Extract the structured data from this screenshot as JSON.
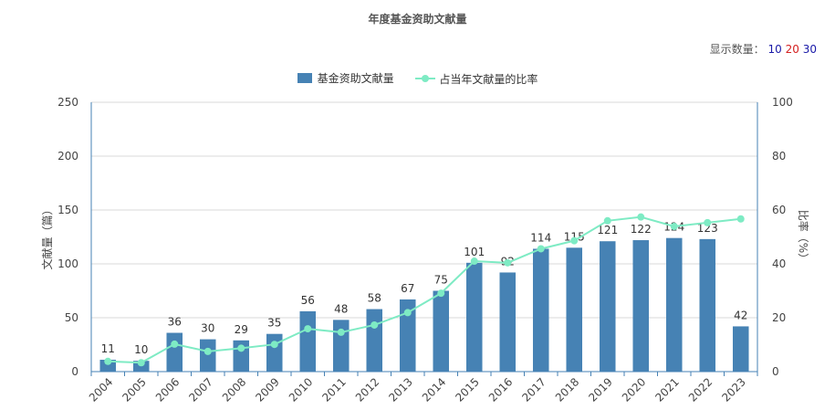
{
  "chart_data": {
    "type": "bar",
    "title": "年度基金资助文献量",
    "categories": [
      "2004",
      "2005",
      "2006",
      "2007",
      "2008",
      "2009",
      "2010",
      "2011",
      "2012",
      "2013",
      "2014",
      "2015",
      "2016",
      "2017",
      "2018",
      "2019",
      "2020",
      "2021",
      "2022",
      "2023"
    ],
    "series": [
      {
        "name": "基金资助文献量",
        "type": "bar",
        "axis": "left",
        "color": "#4682B4",
        "values": [
          11,
          10,
          36,
          30,
          29,
          35,
          56,
          48,
          58,
          67,
          75,
          101,
          92,
          114,
          115,
          121,
          122,
          124,
          123,
          42
        ]
      },
      {
        "name": "占当年文献量的比率",
        "type": "line",
        "axis": "right",
        "color": "#7EEBC4",
        "values": [
          3.8,
          3.3,
          10.2,
          7.5,
          8.7,
          10.1,
          15.9,
          14.6,
          17.3,
          21.9,
          29.1,
          41.0,
          40.4,
          45.6,
          48.6,
          56.0,
          57.4,
          53.9,
          55.3,
          56.7
        ]
      }
    ],
    "ylabel": "文献量（篇）",
    "y2label": "比率（%）",
    "ylim": [
      0,
      250
    ],
    "y2lim": [
      0,
      100
    ],
    "yticks": [
      "0",
      "50",
      "100",
      "150",
      "200",
      "250"
    ],
    "y2ticks": [
      "0",
      "20",
      "40",
      "60",
      "80",
      "100"
    ],
    "grid": true,
    "legend": "top-center"
  },
  "controls": {
    "display_count_label": "显示数量：",
    "options": [
      {
        "label": "10",
        "color": "#1a1aa8"
      },
      {
        "label": "20",
        "color": "#d42020"
      },
      {
        "label": "30",
        "color": "#1a1aa8"
      }
    ]
  }
}
